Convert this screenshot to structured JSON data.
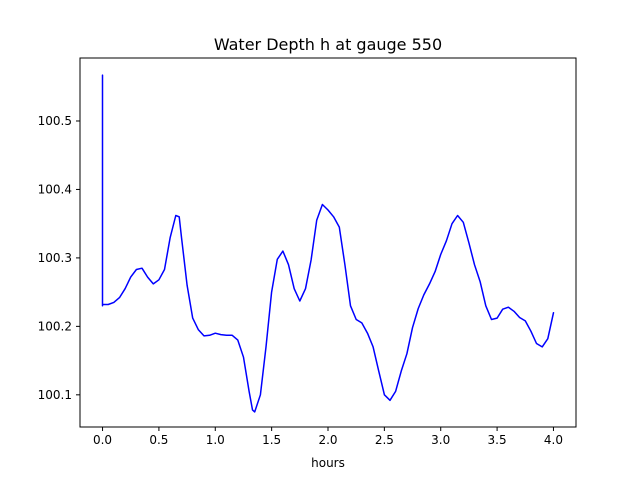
{
  "chart_data": {
    "type": "line",
    "title": "Water Depth h at gauge 550",
    "xlabel": "hours",
    "ylabel": "",
    "xlim": [
      -0.2,
      4.2
    ],
    "ylim": [
      100.053,
      100.592
    ],
    "xticks": [
      0.0,
      0.5,
      1.0,
      1.5,
      2.0,
      2.5,
      3.0,
      3.5,
      4.0
    ],
    "xtick_labels": [
      "0.0",
      "0.5",
      "1.0",
      "1.5",
      "2.0",
      "2.5",
      "3.0",
      "3.5",
      "4.0"
    ],
    "yticks": [
      100.1,
      100.2,
      100.3,
      100.4,
      100.5
    ],
    "ytick_labels": [
      "100.1",
      "100.2",
      "100.3",
      "100.4",
      "100.5"
    ],
    "grid": false,
    "series": [
      {
        "color": "#0000ff",
        "x": [
          0.0,
          0.0,
          0.0,
          0.05,
          0.1,
          0.15,
          0.2,
          0.25,
          0.3,
          0.35,
          0.4,
          0.45,
          0.5,
          0.55,
          0.6,
          0.65,
          0.68,
          0.7,
          0.75,
          0.8,
          0.85,
          0.9,
          0.95,
          1.0,
          1.05,
          1.1,
          1.15,
          1.2,
          1.25,
          1.3,
          1.33,
          1.35,
          1.4,
          1.45,
          1.5,
          1.55,
          1.6,
          1.65,
          1.7,
          1.75,
          1.8,
          1.85,
          1.9,
          1.95,
          2.0,
          2.05,
          2.1,
          2.15,
          2.2,
          2.25,
          2.3,
          2.35,
          2.4,
          2.45,
          2.5,
          2.55,
          2.6,
          2.65,
          2.7,
          2.75,
          2.8,
          2.85,
          2.9,
          2.95,
          3.0,
          3.05,
          3.1,
          3.15,
          3.2,
          3.25,
          3.3,
          3.35,
          3.4,
          3.45,
          3.5,
          3.55,
          3.6,
          3.65,
          3.7,
          3.75,
          3.8,
          3.85,
          3.9,
          3.95,
          4.0
        ],
        "y": [
          100.23,
          100.567,
          100.232,
          100.232,
          100.235,
          100.242,
          100.255,
          100.272,
          100.283,
          100.285,
          100.272,
          100.262,
          100.268,
          100.283,
          100.33,
          100.362,
          100.36,
          100.33,
          100.26,
          100.212,
          100.195,
          100.186,
          100.187,
          100.19,
          100.188,
          100.187,
          100.187,
          100.18,
          100.155,
          100.105,
          100.078,
          100.075,
          100.1,
          100.17,
          100.25,
          100.298,
          100.31,
          100.29,
          100.255,
          100.237,
          100.255,
          100.297,
          100.355,
          100.378,
          100.37,
          100.36,
          100.345,
          100.29,
          100.23,
          100.21,
          100.205,
          100.19,
          100.17,
          100.135,
          100.1,
          100.092,
          100.105,
          100.135,
          100.16,
          100.198,
          100.226,
          100.246,
          100.262,
          100.28,
          100.305,
          100.325,
          100.35,
          100.362,
          100.352,
          100.322,
          100.29,
          100.265,
          100.23,
          100.21,
          100.212,
          100.225,
          100.228,
          100.222,
          100.213,
          100.208,
          100.193,
          100.175,
          100.17,
          100.182,
          100.22
        ]
      }
    ]
  }
}
